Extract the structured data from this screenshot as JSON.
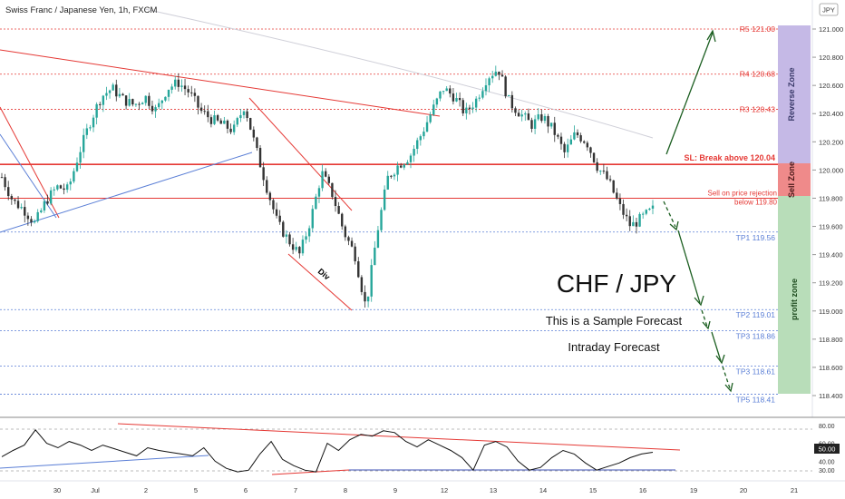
{
  "header": {
    "symbol": "Swiss Franc / Japanese Yen, 1h, FXCM",
    "currency": "JPY"
  },
  "annotations": {
    "title": "CHF / JPY",
    "subtitle1": "This is a Sample Forecast",
    "subtitle2": "Intraday Forecast",
    "div_label": "Div"
  },
  "zones": {
    "reverse": "Reverse Zone",
    "sell": "Sell Zone",
    "profit": "profit zone"
  },
  "colors": {
    "up": "#26A69A",
    "down": "#333333",
    "resistance": "#E53935",
    "support": "#5B7FD6",
    "arrow": "#1B5E20",
    "reverse_zone": "#C5B9E6",
    "sell_zone": "#EF8A8A",
    "profit_zone": "#B8DDB9",
    "rsi": "#111111"
  },
  "chart_data": {
    "type": "candlestick",
    "instrument": "CHF/JPY",
    "timeframe": "1h",
    "price_axis": {
      "ticks": [
        "121.000",
        "120.800",
        "120.600",
        "120.400",
        "120.200",
        "120.000",
        "119.800",
        "119.600",
        "119.400",
        "119.200",
        "119.000",
        "118.800",
        "118.600",
        "118.400"
      ],
      "range": [
        118.3,
        121.1
      ]
    },
    "x_ticks": [
      "30",
      "Jul",
      "2",
      "5",
      "6",
      "7",
      "8",
      "9",
      "12",
      "13",
      "14",
      "15",
      "16",
      "19",
      "20",
      "21"
    ],
    "levels": [
      {
        "name": "R5",
        "label": "R5  121.00",
        "value": 121.0,
        "kind": "resistance"
      },
      {
        "name": "R4",
        "label": "R4  120.68",
        "value": 120.68,
        "kind": "resistance"
      },
      {
        "name": "R3",
        "label": "R3  120.43",
        "value": 120.43,
        "kind": "resistance"
      },
      {
        "name": "SL",
        "label": "SL: Break above 120.04",
        "value": 120.04,
        "kind": "stop"
      },
      {
        "name": "Sell",
        "label": "Sell on price rejection below 119.80",
        "value": 119.8,
        "kind": "entry"
      },
      {
        "name": "TP1",
        "label": "TP1  119.56",
        "value": 119.56,
        "kind": "target"
      },
      {
        "name": "TP2",
        "label": "TP2  119.01",
        "value": 119.01,
        "kind": "target"
      },
      {
        "name": "TP3a",
        "label": "TP3  118.86",
        "value": 118.86,
        "kind": "target"
      },
      {
        "name": "TP3b",
        "label": "TP3  118.61",
        "value": 118.61,
        "kind": "target"
      },
      {
        "name": "TP5",
        "label": "TP5  118.41",
        "value": 118.41,
        "kind": "target"
      }
    ],
    "price_path": [
      119.95,
      119.78,
      119.72,
      119.62,
      119.78,
      119.88,
      119.86,
      120.12,
      120.34,
      120.52,
      120.58,
      120.5,
      120.46,
      120.52,
      120.42,
      120.58,
      120.62,
      120.55,
      120.42,
      120.36,
      120.32,
      120.28,
      120.46,
      120.16,
      119.88,
      119.62,
      119.5,
      119.4,
      119.65,
      119.98,
      119.82,
      119.56,
      119.4,
      119.02,
      119.55,
      119.95,
      120.04,
      120.1,
      120.25,
      120.42,
      120.58,
      120.52,
      120.4,
      120.5,
      120.66,
      120.72,
      120.48,
      120.4,
      120.32,
      120.38,
      120.28,
      120.12,
      120.26,
      120.2,
      120.02,
      119.92,
      119.74,
      119.6,
      119.66,
      119.72
    ],
    "rsi": {
      "ticks": [
        "80.00",
        "60.00",
        "40.00",
        "30.00"
      ],
      "current_label": "50.00",
      "range": [
        20,
        85
      ],
      "values": [
        45,
        52,
        58,
        75,
        60,
        55,
        62,
        58,
        52,
        58,
        54,
        50,
        46,
        55,
        52,
        50,
        48,
        46,
        55,
        40,
        32,
        28,
        30,
        48,
        62,
        42,
        35,
        30,
        28,
        60,
        52,
        64,
        70,
        68,
        74,
        72,
        62,
        56,
        64,
        58,
        52,
        44,
        30,
        58,
        62,
        56,
        40,
        30,
        33,
        44,
        52,
        48,
        38,
        30,
        34,
        38,
        44,
        48,
        50
      ]
    }
  }
}
